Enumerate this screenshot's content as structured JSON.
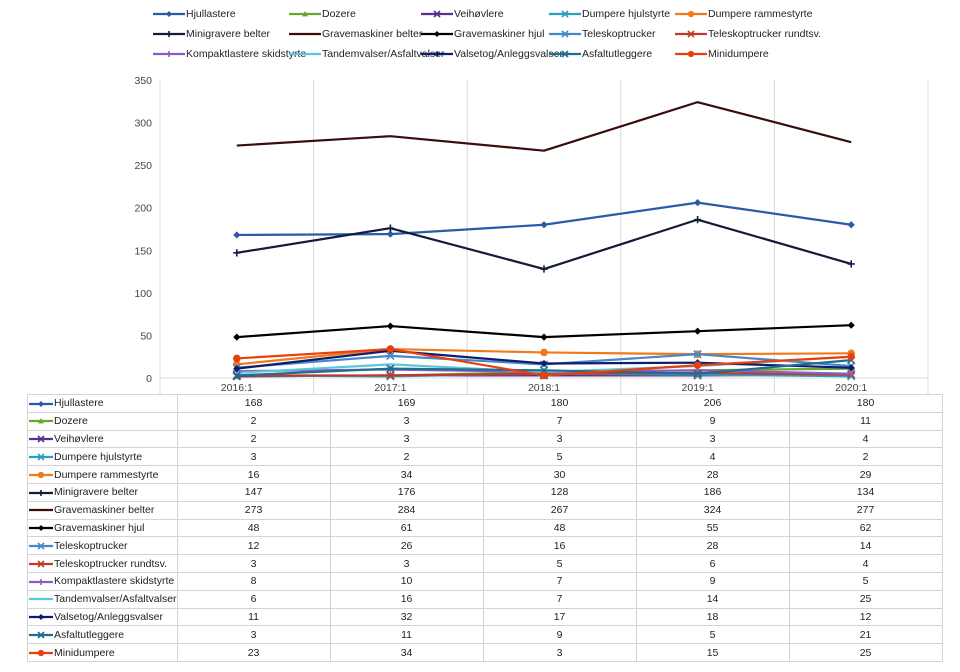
{
  "chart_data": {
    "type": "line",
    "title": "",
    "xlabel": "",
    "ylabel": "",
    "ylim": [
      0,
      350
    ],
    "yticks": [
      "0",
      "50",
      "100",
      "150",
      "200",
      "250",
      "300",
      "350"
    ],
    "categories": [
      "2016:1",
      "2017:1",
      "2018:1",
      "2019:1",
      "2020:1"
    ],
    "grid": "vertical",
    "legend": "top",
    "series": [
      {
        "name": "Hjullastere",
        "color": "#2a5aa8",
        "marker": "diamond",
        "values": [
          168,
          169,
          180,
          206,
          180
        ]
      },
      {
        "name": "Dozere",
        "color": "#6aa530",
        "marker": "triangle",
        "values": [
          2,
          3,
          7,
          9,
          11
        ]
      },
      {
        "name": "Veihøvlere",
        "color": "#5a2f8a",
        "marker": "x",
        "values": [
          2,
          3,
          3,
          3,
          4
        ]
      },
      {
        "name": "Dumpere hjulstyrte",
        "color": "#2b9fbd",
        "marker": "x",
        "values": [
          3,
          2,
          5,
          4,
          2
        ]
      },
      {
        "name": "Dumpere rammestyrte",
        "color": "#f07a1a",
        "marker": "circle",
        "values": [
          16,
          34,
          30,
          28,
          29
        ]
      },
      {
        "name": "Minigravere belter",
        "color": "#141c3c",
        "marker": "plus",
        "values": [
          147,
          176,
          128,
          186,
          134
        ]
      },
      {
        "name": "Gravemaskiner belter",
        "color": "#3a0c0c",
        "marker": "none",
        "values": [
          273,
          284,
          267,
          324,
          277
        ]
      },
      {
        "name": "Gravemaskiner hjul",
        "color": "#000000",
        "marker": "diamond",
        "values": [
          48,
          61,
          48,
          55,
          62
        ]
      },
      {
        "name": "Teleskoptrucker",
        "color": "#4a86c8",
        "marker": "x",
        "values": [
          12,
          26,
          16,
          28,
          14
        ]
      },
      {
        "name": "Teleskoptrucker rundtsv.",
        "color": "#c0392b",
        "marker": "x",
        "values": [
          3,
          3,
          5,
          6,
          4
        ]
      },
      {
        "name": "Kompaktlastere skidstyrte",
        "color": "#8e5ac8",
        "marker": "plus",
        "values": [
          8,
          10,
          7,
          9,
          5
        ]
      },
      {
        "name": "Tandemvalser/Asfaltvalser",
        "color": "#5ac8d8",
        "marker": "none",
        "values": [
          6,
          16,
          7,
          14,
          25
        ]
      },
      {
        "name": "Valsetog/Anleggsvalser",
        "color": "#0e1e6e",
        "marker": "diamond",
        "values": [
          11,
          32,
          17,
          18,
          12
        ]
      },
      {
        "name": "Asfaltutleggere",
        "color": "#1f6e8c",
        "marker": "x",
        "values": [
          3,
          11,
          9,
          5,
          21
        ]
      },
      {
        "name": "Minidumpere",
        "color": "#e8400c",
        "marker": "circle",
        "values": [
          23,
          34,
          3,
          15,
          25
        ]
      }
    ]
  }
}
